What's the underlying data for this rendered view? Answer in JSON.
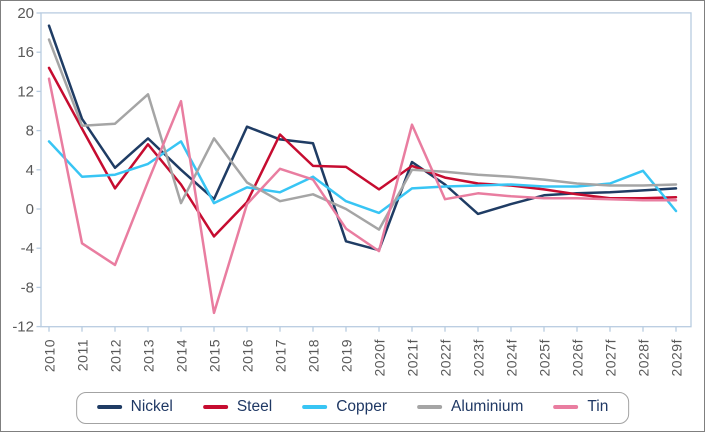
{
  "figure": {
    "background": "#ffffff",
    "outer_border_color": "#7f7f7f"
  },
  "chart_data": {
    "type": "line",
    "title": "",
    "xlabel": "",
    "ylabel": "",
    "categories": [
      "2010",
      "2011",
      "2012",
      "2013",
      "2014",
      "2015",
      "2016",
      "2017",
      "2018",
      "2019",
      "2020f",
      "2021f",
      "2022f",
      "2023f",
      "2024f",
      "2025f",
      "2026f",
      "2027f",
      "2028f",
      "2029f"
    ],
    "series": [
      {
        "name": "Nickel",
        "color": "#1f3c64",
        "values": [
          18.7,
          9.2,
          4.2,
          7.2,
          4.0,
          1.0,
          8.4,
          7.1,
          6.7,
          -3.3,
          -4.2,
          4.8,
          2.5,
          -0.5,
          0.5,
          1.4,
          1.6,
          1.7,
          1.9,
          2.1
        ]
      },
      {
        "name": "Steel",
        "color": "#c60c30",
        "values": [
          14.4,
          8.2,
          2.1,
          6.6,
          2.5,
          -2.8,
          0.7,
          7.6,
          4.4,
          4.3,
          2.0,
          4.4,
          3.2,
          2.6,
          2.4,
          2.0,
          1.5,
          1.1,
          1.1,
          1.2
        ]
      },
      {
        "name": "Copper",
        "color": "#38c5f4",
        "values": [
          6.9,
          3.3,
          3.5,
          4.6,
          6.9,
          0.6,
          2.2,
          1.7,
          3.3,
          0.8,
          -0.4,
          2.1,
          2.3,
          2.4,
          2.5,
          2.3,
          2.3,
          2.6,
          3.9,
          -0.2
        ]
      },
      {
        "name": "Aluminium",
        "color": "#a5a5a5",
        "values": [
          17.3,
          8.5,
          8.7,
          11.7,
          0.6,
          7.2,
          2.7,
          0.8,
          1.5,
          0.0,
          -2.1,
          4.0,
          3.8,
          3.5,
          3.3,
          3.0,
          2.6,
          2.4,
          2.4,
          2.5
        ]
      },
      {
        "name": "Tin",
        "color": "#e97da0",
        "values": [
          13.3,
          -3.5,
          -5.7,
          2.8,
          11.0,
          -10.6,
          0.5,
          4.1,
          3.0,
          -2.0,
          -4.3,
          8.6,
          1.0,
          1.6,
          1.3,
          1.1,
          1.1,
          1.0,
          0.9,
          0.9
        ]
      }
    ],
    "ylim": [
      -12,
      20
    ],
    "yticks": [
      20,
      16,
      12,
      8,
      4,
      0,
      -4,
      -8,
      -12
    ],
    "grid": false,
    "legend_position": "bottom",
    "axis_color": "#b8cce0",
    "tick_label_color": "#595959",
    "legend_text_color": "#1f3864",
    "legend_border_color": "#a3a3a3"
  }
}
